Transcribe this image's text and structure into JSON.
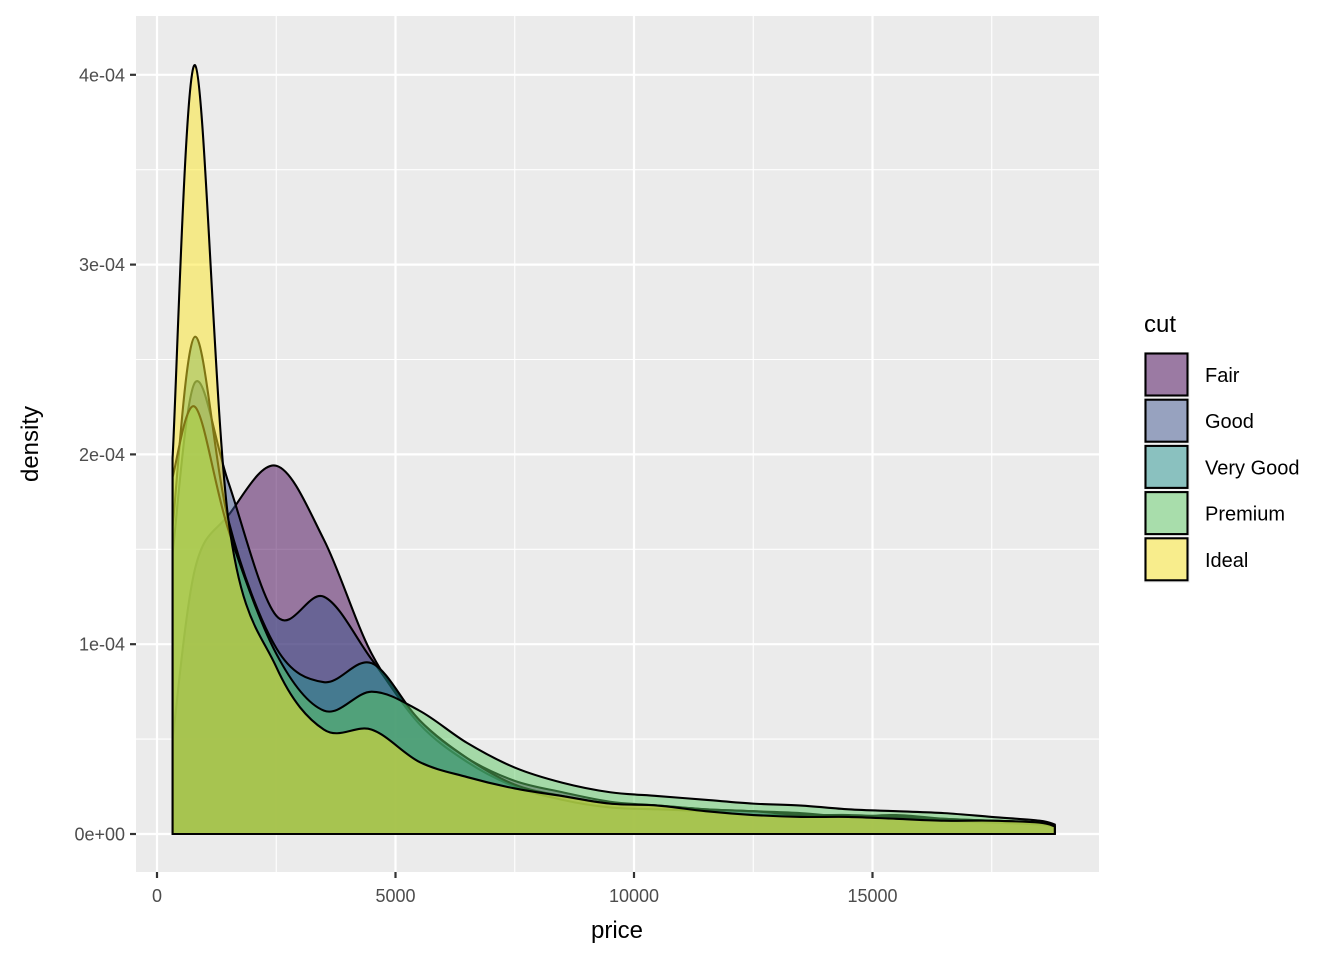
{
  "chart_data": {
    "type": "area",
    "subtype": "density",
    "xlabel": "price",
    "ylabel": "density",
    "xlim": [
      0,
      19000
    ],
    "ylim": [
      0,
      0.00041
    ],
    "x_ticks": [
      0,
      5000,
      10000,
      15000
    ],
    "x_tick_labels": [
      "0",
      "5000",
      "10000",
      "15000"
    ],
    "y_ticks": [
      0,
      0.0001,
      0.0002,
      0.0003,
      0.0004
    ],
    "y_tick_labels": [
      "0e+00",
      "1e-04",
      "2e-04",
      "3e-04",
      "4e-04"
    ],
    "grid": true,
    "legend": {
      "title": "cut",
      "position": "right"
    },
    "x": [
      326,
      800,
      1500,
      2500,
      3500,
      4500,
      5500,
      6500,
      7500,
      8500,
      9500,
      10500,
      11500,
      12500,
      13500,
      14500,
      15500,
      16500,
      17500,
      18500,
      18823
    ],
    "series": [
      {
        "name": "Fair",
        "color": "#440154",
        "values": [
          5e-05,
          0.00014,
          0.000168,
          0.000194,
          0.000155,
          9.5e-05,
          6e-05,
          4e-05,
          2.8e-05,
          2.2e-05,
          1.7e-05,
          1.5e-05,
          1.3e-05,
          1.2e-05,
          1.1e-05,
          9e-06,
          9e-06,
          7e-06,
          6e-06,
          5e-06,
          4e-06
        ]
      },
      {
        "name": "Good",
        "color": "#3B528B",
        "values": [
          0.000148,
          0.000238,
          0.000185,
          0.000115,
          0.000125,
          9.2e-05,
          5.8e-05,
          3.8e-05,
          2.5e-05,
          1.8e-05,
          1.4e-05,
          1.3e-05,
          1.2e-05,
          1e-05,
          1e-05,
          9e-06,
          1e-05,
          8e-06,
          7e-06,
          6e-06,
          4e-06
        ]
      },
      {
        "name": "Very Good",
        "color": "#21908C",
        "values": [
          0.000162,
          0.000262,
          0.000165,
          9.8e-05,
          8e-05,
          9e-05,
          6e-05,
          4e-05,
          2.6e-05,
          2e-05,
          1.6e-05,
          1.5e-05,
          1.3e-05,
          1.2e-05,
          1e-05,
          1e-05,
          9e-06,
          8e-06,
          7e-06,
          6e-06,
          4e-06
        ]
      },
      {
        "name": "Premium",
        "color": "#5DC863",
        "values": [
          0.000188,
          0.000225,
          0.00016,
          9.5e-05,
          6.5e-05,
          7.5e-05,
          6.5e-05,
          4.8e-05,
          3.5e-05,
          2.7e-05,
          2.2e-05,
          2e-05,
          1.8e-05,
          1.6e-05,
          1.5e-05,
          1.3e-05,
          1.2e-05,
          1.1e-05,
          9e-06,
          7e-06,
          5e-06
        ]
      },
      {
        "name": "Ideal",
        "color": "#FDE725",
        "values": [
          0.000198,
          0.000405,
          0.000165,
          8.8e-05,
          5.5e-05,
          5.5e-05,
          3.8e-05,
          3e-05,
          2.4e-05,
          2e-05,
          1.6e-05,
          1.5e-05,
          1.2e-05,
          1e-05,
          9e-06,
          9e-06,
          8e-06,
          7e-06,
          7e-06,
          6e-06,
          4e-06
        ]
      }
    ]
  }
}
